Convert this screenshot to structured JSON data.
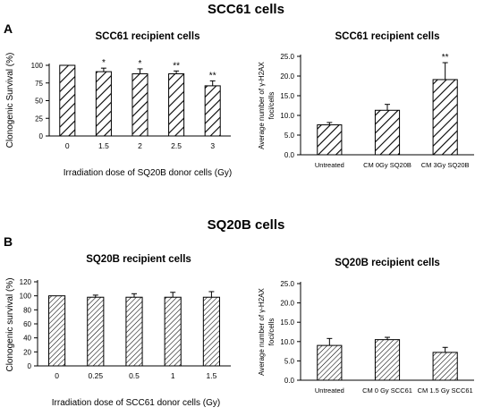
{
  "panels": [
    {
      "letter": "A",
      "title": "SCC61 cells"
    },
    {
      "letter": "B",
      "title": "SQ20B cells"
    }
  ],
  "chart_data": [
    {
      "type": "bar",
      "title": "SCC61 recipient cells",
      "xlabel": "Irradiation dose of SQ20B donor cells (Gy)",
      "ylabel": "Clonogenic Survival (%)",
      "categories": [
        "0",
        "1.5",
        "2",
        "2.5",
        "3"
      ],
      "values": [
        100,
        91,
        88,
        88,
        71
      ],
      "errors": [
        0,
        5,
        7,
        4,
        7
      ],
      "annotations": [
        "",
        "*",
        "*",
        "**",
        "**"
      ],
      "ylim": [
        0,
        100
      ],
      "yticks": [
        "0",
        "25",
        "50",
        "75",
        "100"
      ],
      "pattern": "diag-wide"
    },
    {
      "type": "bar",
      "title": "SCC61 recipient cells",
      "xlabel": "",
      "ylabel": "Average number of γ-H2AX foci/cells",
      "categories": [
        "Untreated",
        "CM 0Gy SQ20B",
        "CM 3Gy SQ20B"
      ],
      "values": [
        7.6,
        11.3,
        19.1
      ],
      "errors": [
        0.6,
        1.5,
        4.3
      ],
      "annotations": [
        "",
        "",
        "**"
      ],
      "ylim": [
        0,
        25
      ],
      "yticks": [
        "0.0",
        "5.0",
        "10.0",
        "15.0",
        "20.0",
        "25.0"
      ],
      "pattern": "diag-wide"
    },
    {
      "type": "bar",
      "title": "SQ20B recipient cells",
      "xlabel": "Irradiation dose of SCC61 donor cells (Gy)",
      "ylabel": "Clonogenic survival (%)",
      "categories": [
        "0",
        "0.25",
        "0.5",
        "1",
        "1.5"
      ],
      "values": [
        100,
        98,
        98,
        98,
        98
      ],
      "errors": [
        0,
        3,
        5,
        7,
        8
      ],
      "annotations": [
        "",
        "",
        "",
        "",
        ""
      ],
      "ylim": [
        0,
        120
      ],
      "yticks": [
        "0",
        "20",
        "40",
        "60",
        "80",
        "100",
        "120"
      ],
      "pattern": "diag-fine"
    },
    {
      "type": "bar",
      "title": "SQ20B recipient cells",
      "xlabel": "",
      "ylabel": "Average number of γ-H2AX foci/cells",
      "categories": [
        "Untreated",
        "CM 0 Gy SCC61",
        "CM 1.5 Gy SCC61"
      ],
      "values": [
        9.0,
        10.5,
        7.2
      ],
      "errors": [
        1.8,
        0.6,
        1.3
      ],
      "annotations": [
        "",
        "",
        ""
      ],
      "ylim": [
        0,
        25
      ],
      "yticks": [
        "0.0",
        "5.0",
        "10.0",
        "15.0",
        "20.0",
        "25.0"
      ],
      "pattern": "diag-fine"
    }
  ]
}
